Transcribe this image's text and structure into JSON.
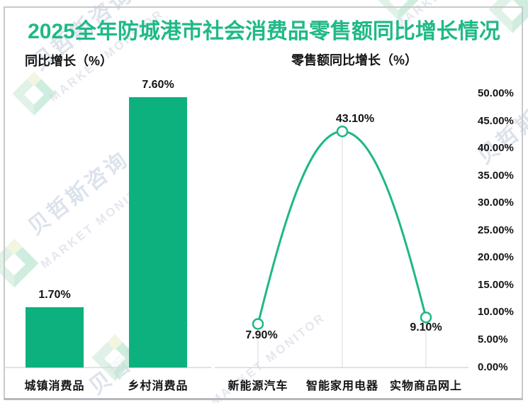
{
  "title": "2025全年防城港市社会消费品零售额同比增长情况",
  "watermark": {
    "cjk": "贝哲斯咨询",
    "latin": "MARKET MONITOR"
  },
  "colors": {
    "title_green": "#1FB987",
    "bar_green": "#0DB17E",
    "line_green": "#1EB885",
    "axis_gray": "#D9D9D9",
    "text_black": "#141414",
    "frame_gray": "#C7C9CC"
  },
  "chart_data": [
    {
      "type": "bar",
      "title": "同比增长（%）",
      "categories": [
        "城镇消费品",
        "乡村消费品"
      ],
      "values": [
        1.7,
        7.6
      ],
      "value_labels": [
        "1.70%",
        "7.60%"
      ],
      "unit": "percent",
      "grid": false,
      "legend": "none"
    },
    {
      "type": "line",
      "title": "零售额同比增长（%）",
      "categories": [
        "新能源汽车",
        "智能家用电器",
        "实物商品网上"
      ],
      "values": [
        7.9,
        43.1,
        9.1
      ],
      "value_labels": [
        "7.90%",
        "43.10%",
        "9.10%"
      ],
      "y_axis": {
        "side": "right",
        "min": 0,
        "max": 50,
        "step": 5,
        "tick_labels": [
          "0.00%",
          "5.00%",
          "10.00%",
          "15.00%",
          "20.00%",
          "25.00%",
          "30.00%",
          "35.00%",
          "40.00%",
          "45.00%",
          "50.00%"
        ]
      },
      "smooth": true,
      "marker": "open-circle",
      "drop_lines": true,
      "grid": false,
      "legend": "none"
    }
  ]
}
